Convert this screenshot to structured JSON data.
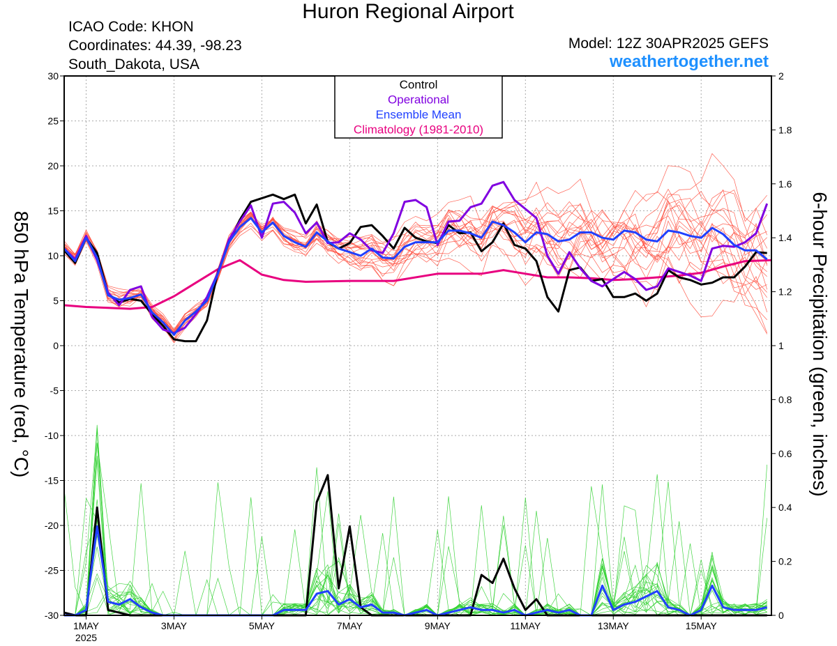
{
  "header": {
    "title": "Huron Regional Airport",
    "icao": "ICAO Code: KHON",
    "coords": "Coordinates: 44.39, -98.23",
    "region": "South_Dakota, USA",
    "model": "Model: 12Z 30APR2025 GEFS",
    "site": "weathertogether.net"
  },
  "colors": {
    "control": "#000000",
    "operational": "#8000e0",
    "ensemble_mean": "#2040ff",
    "climatology": "#e8007f",
    "members_temp": "#ff5040",
    "members_precip": "#30d030",
    "site": "#1e90ff"
  },
  "chart_data": {
    "type": "line",
    "xlabel": "",
    "ylabel": "850 hPa Temperature (red, °C)",
    "y2label": "6-hour Precipitation (green, inches)",
    "x_unit": "days since 30APR2025 12Z",
    "xlim": [
      0.5,
      16.6
    ],
    "ylim": [
      -30,
      30
    ],
    "y2lim": [
      0,
      2
    ],
    "x_ticks": [
      {
        "x": 1,
        "label": "1MAY",
        "sub": "2025"
      },
      {
        "x": 3,
        "label": "3MAY",
        "sub": ""
      },
      {
        "x": 5,
        "label": "5MAY",
        "sub": ""
      },
      {
        "x": 7,
        "label": "7MAY",
        "sub": ""
      },
      {
        "x": 9,
        "label": "9MAY",
        "sub": ""
      },
      {
        "x": 11,
        "label": "11MAY",
        "sub": ""
      },
      {
        "x": 13,
        "label": "13MAY",
        "sub": ""
      },
      {
        "x": 15,
        "label": "15MAY",
        "sub": ""
      }
    ],
    "y_ticks": [
      30,
      25,
      20,
      15,
      10,
      5,
      0,
      -5,
      -10,
      -15,
      -20,
      -25,
      -30
    ],
    "y2_ticks": [
      "2",
      "1.8",
      "1.6",
      "1.4",
      "1.2",
      "1",
      "0.8",
      "0.6",
      "0.4",
      "0.2",
      "0"
    ],
    "legend": [
      "Control",
      "Operational",
      "Ensemble Mean",
      "Climatology (1981-2010)"
    ],
    "grid": true,
    "series": [
      {
        "name": "Control",
        "axis": "temp",
        "x": [
          0.5,
          0.75,
          1.0,
          1.25,
          1.5,
          1.75,
          2.0,
          2.25,
          2.5,
          2.75,
          3.0,
          3.25,
          3.5,
          3.75,
          4.0,
          4.25,
          4.5,
          4.75,
          5.0,
          5.25,
          5.5,
          5.75,
          6.0,
          6.25,
          6.5,
          6.75,
          7.0,
          7.25,
          7.5,
          7.75,
          8.0,
          8.25,
          8.5,
          8.75,
          9.0,
          9.25,
          9.5,
          9.75,
          10.0,
          10.25,
          10.5,
          10.75,
          11.0,
          11.25,
          11.5,
          11.75,
          12.0,
          12.25,
          12.5,
          12.75,
          13.0,
          13.25,
          13.5,
          13.75,
          14.0,
          14.25,
          14.5,
          14.75,
          15.0,
          15.25,
          15.5,
          15.75,
          16.0,
          16.25,
          16.5
        ],
        "y": [
          10.6,
          9.2,
          12.0,
          10.3,
          5.8,
          4.8,
          5.2,
          5.0,
          3.5,
          2.2,
          0.7,
          0.5,
          0.5,
          2.8,
          8.2,
          11.5,
          14.0,
          16.0,
          16.4,
          16.8,
          16.3,
          16.8,
          13.6,
          15.7,
          11.5,
          10.8,
          11.4,
          13.2,
          13.4,
          12.2,
          10.8,
          13.1,
          12.0,
          11.6,
          11.4,
          13.4,
          12.5,
          12.6,
          10.5,
          11.5,
          13.6,
          11.2,
          10.8,
          9.4,
          5.4,
          3.8,
          8.4,
          8.7,
          7.2,
          7.4,
          5.4,
          5.4,
          5.8,
          5.0,
          5.8,
          8.4,
          7.6,
          7.3,
          6.8,
          7.0,
          7.6,
          7.6,
          8.8,
          10.4,
          10.3
        ]
      },
      {
        "name": "Operational",
        "axis": "temp",
        "x": [
          0.5,
          0.75,
          1.0,
          1.25,
          1.5,
          1.75,
          2.0,
          2.25,
          2.5,
          2.75,
          3.0,
          3.25,
          3.5,
          3.75,
          4.0,
          4.25,
          4.5,
          4.75,
          5.0,
          5.25,
          5.5,
          5.75,
          6.0,
          6.25,
          6.5,
          6.75,
          7.0,
          7.25,
          7.5,
          7.75,
          8.0,
          8.25,
          8.5,
          8.75,
          9.0,
          9.25,
          9.5,
          9.75,
          10.0,
          10.25,
          10.5,
          10.75,
          11.0,
          11.25,
          11.5,
          11.75,
          12.0,
          12.25,
          12.5,
          12.75,
          13.0,
          13.25,
          13.5,
          13.75,
          14.0,
          14.25,
          14.5,
          14.75,
          15.0,
          15.25,
          15.5,
          15.75,
          16.0,
          16.25,
          16.5
        ],
        "y": [
          10.8,
          9.6,
          12.2,
          9.5,
          5.9,
          4.5,
          6.2,
          6.6,
          3.2,
          1.8,
          1.4,
          2.0,
          3.5,
          5.4,
          8.1,
          11.8,
          13.8,
          15.6,
          12.0,
          15.8,
          16.0,
          14.8,
          12.5,
          13.7,
          11.4,
          11.5,
          12.5,
          11.8,
          10.6,
          10.3,
          12.5,
          16.0,
          16.2,
          15.4,
          11.2,
          13.8,
          13.9,
          15.4,
          15.8,
          17.8,
          18.2,
          16.2,
          15.2,
          14.2,
          10.0,
          8.0,
          10.4,
          8.6,
          7.2,
          6.6,
          7.4,
          8.2,
          7.4,
          6.2,
          6.6,
          8.6,
          8.2,
          7.8,
          7.2,
          10.8,
          11.1,
          11.0,
          11.5,
          12.5,
          15.8
        ]
      },
      {
        "name": "Ensemble Mean",
        "axis": "temp",
        "x": [
          0.5,
          0.75,
          1.0,
          1.25,
          1.5,
          1.75,
          2.0,
          2.25,
          2.5,
          2.75,
          3.0,
          3.25,
          3.5,
          3.75,
          4.0,
          4.25,
          4.5,
          4.75,
          5.0,
          5.25,
          5.5,
          5.75,
          6.0,
          6.25,
          6.5,
          6.75,
          7.0,
          7.25,
          7.5,
          7.75,
          8.0,
          8.25,
          8.5,
          8.75,
          9.0,
          9.25,
          9.5,
          9.75,
          10.0,
          10.25,
          10.5,
          10.75,
          11.0,
          11.25,
          11.5,
          11.75,
          12.0,
          12.25,
          12.5,
          12.75,
          13.0,
          13.25,
          13.5,
          13.75,
          14.0,
          14.25,
          14.5,
          14.75,
          15.0,
          15.25,
          15.5,
          15.75,
          16.0,
          16.25,
          16.5
        ],
        "y": [
          10.8,
          9.4,
          12.0,
          9.8,
          5.6,
          5.1,
          5.3,
          5.7,
          3.7,
          2.6,
          1.2,
          2.8,
          3.8,
          5.0,
          8.0,
          11.5,
          13.2,
          14.2,
          12.6,
          13.7,
          12.2,
          11.5,
          11.0,
          12.6,
          11.6,
          10.8,
          10.4,
          10.0,
          10.8,
          9.8,
          9.7,
          11.0,
          11.5,
          11.5,
          11.5,
          12.8,
          12.8,
          12.5,
          12.0,
          13.8,
          13.4,
          12.6,
          11.5,
          12.6,
          12.4,
          11.6,
          11.8,
          12.6,
          12.6,
          12.0,
          11.8,
          12.8,
          12.6,
          11.8,
          11.6,
          12.8,
          12.6,
          12.2,
          12.0,
          13.1,
          12.4,
          11.2,
          10.6,
          10.6,
          9.6
        ]
      },
      {
        "name": "Climatology (1981-2010)",
        "axis": "temp",
        "x": [
          0.5,
          1.0,
          1.5,
          2.0,
          2.5,
          3.0,
          3.5,
          4.0,
          4.5,
          5.0,
          5.5,
          6.0,
          7.0,
          8.0,
          9.0,
          10.0,
          10.5,
          11.0,
          11.5,
          12.0,
          12.5,
          13.0,
          13.5,
          14.0,
          14.5,
          15.0,
          15.5,
          16.0,
          16.6
        ],
        "y": [
          4.5,
          4.3,
          4.2,
          4.1,
          4.3,
          5.5,
          7.0,
          8.5,
          9.5,
          7.9,
          7.3,
          7.1,
          7.2,
          7.2,
          8.0,
          8.0,
          8.4,
          8.0,
          7.6,
          7.6,
          7.5,
          7.3,
          7.4,
          7.6,
          7.8,
          8.1,
          8.8,
          9.4,
          9.5
        ]
      },
      {
        "name": "Control",
        "axis": "precip",
        "x": [
          0.5,
          0.75,
          1.0,
          1.25,
          1.5,
          1.75,
          2.0,
          2.25,
          2.5,
          2.75,
          3.0,
          3.25,
          3.5,
          3.75,
          4.0,
          4.25,
          4.5,
          4.75,
          5.0,
          5.25,
          5.5,
          5.75,
          6.0,
          6.25,
          6.5,
          6.75,
          7.0,
          7.25,
          7.5,
          7.75,
          8.0,
          8.25,
          8.5,
          8.75,
          9.0,
          9.25,
          9.5,
          9.75,
          10.0,
          10.25,
          10.5,
          10.75,
          11.0,
          11.25,
          11.5,
          11.75,
          12.0,
          12.25,
          12.5,
          12.75,
          13.0,
          13.25,
          13.5,
          13.75,
          14.0,
          14.25,
          14.5,
          14.75,
          15.0,
          15.25,
          15.5,
          15.75,
          16.0,
          16.25,
          16.5
        ],
        "y": [
          0.01,
          0.0,
          0.0,
          0.4,
          0.02,
          0.01,
          0.0,
          0.0,
          0.0,
          0.0,
          0.0,
          0.0,
          0.0,
          0.0,
          0.0,
          0.0,
          0.0,
          0.0,
          0.0,
          0.0,
          0.0,
          0.0,
          0.0,
          0.42,
          0.52,
          0.1,
          0.33,
          0.03,
          0.0,
          0.0,
          0.0,
          0.0,
          0.0,
          0.0,
          0.0,
          0.0,
          0.0,
          0.0,
          0.15,
          0.12,
          0.21,
          0.1,
          0.02,
          0.06,
          0.0,
          0.0,
          0.0,
          0.0,
          0.0,
          0.0,
          0.0,
          0.0,
          0.0,
          0.0,
          0.0,
          0.0,
          0.0,
          0.0,
          0.0,
          0.0,
          0.0,
          0.0,
          0.0,
          0.0,
          0.0
        ]
      },
      {
        "name": "Ensemble Mean",
        "axis": "precip",
        "x": [
          0.5,
          0.75,
          1.0,
          1.25,
          1.5,
          1.75,
          2.0,
          2.25,
          2.5,
          2.75,
          3.0,
          3.25,
          3.5,
          3.75,
          4.0,
          4.25,
          4.5,
          4.75,
          5.0,
          5.25,
          5.5,
          5.75,
          6.0,
          6.25,
          6.5,
          6.75,
          7.0,
          7.25,
          7.5,
          7.75,
          8.0,
          8.25,
          8.5,
          8.75,
          9.0,
          9.25,
          9.5,
          9.75,
          10.0,
          10.25,
          10.5,
          10.75,
          11.0,
          11.25,
          11.5,
          11.75,
          12.0,
          12.25,
          12.5,
          12.75,
          13.0,
          13.25,
          13.5,
          13.75,
          14.0,
          14.25,
          14.5,
          14.75,
          15.0,
          15.25,
          15.5,
          15.75,
          16.0,
          16.25,
          16.5
        ],
        "y": [
          0.0,
          0.0,
          0.02,
          0.33,
          0.05,
          0.04,
          0.06,
          0.03,
          0.01,
          0.0,
          0.0,
          0.0,
          0.0,
          0.0,
          0.0,
          0.0,
          0.0,
          0.0,
          0.0,
          0.0,
          0.02,
          0.02,
          0.02,
          0.08,
          0.09,
          0.04,
          0.06,
          0.03,
          0.04,
          0.01,
          0.01,
          0.0,
          0.01,
          0.02,
          0.0,
          0.01,
          0.02,
          0.03,
          0.02,
          0.02,
          0.01,
          0.02,
          0.0,
          0.01,
          0.02,
          0.01,
          0.02,
          0.0,
          0.0,
          0.11,
          0.02,
          0.04,
          0.05,
          0.07,
          0.09,
          0.03,
          0.02,
          0.0,
          0.02,
          0.11,
          0.03,
          0.02,
          0.02,
          0.02,
          0.03
        ]
      }
    ]
  }
}
